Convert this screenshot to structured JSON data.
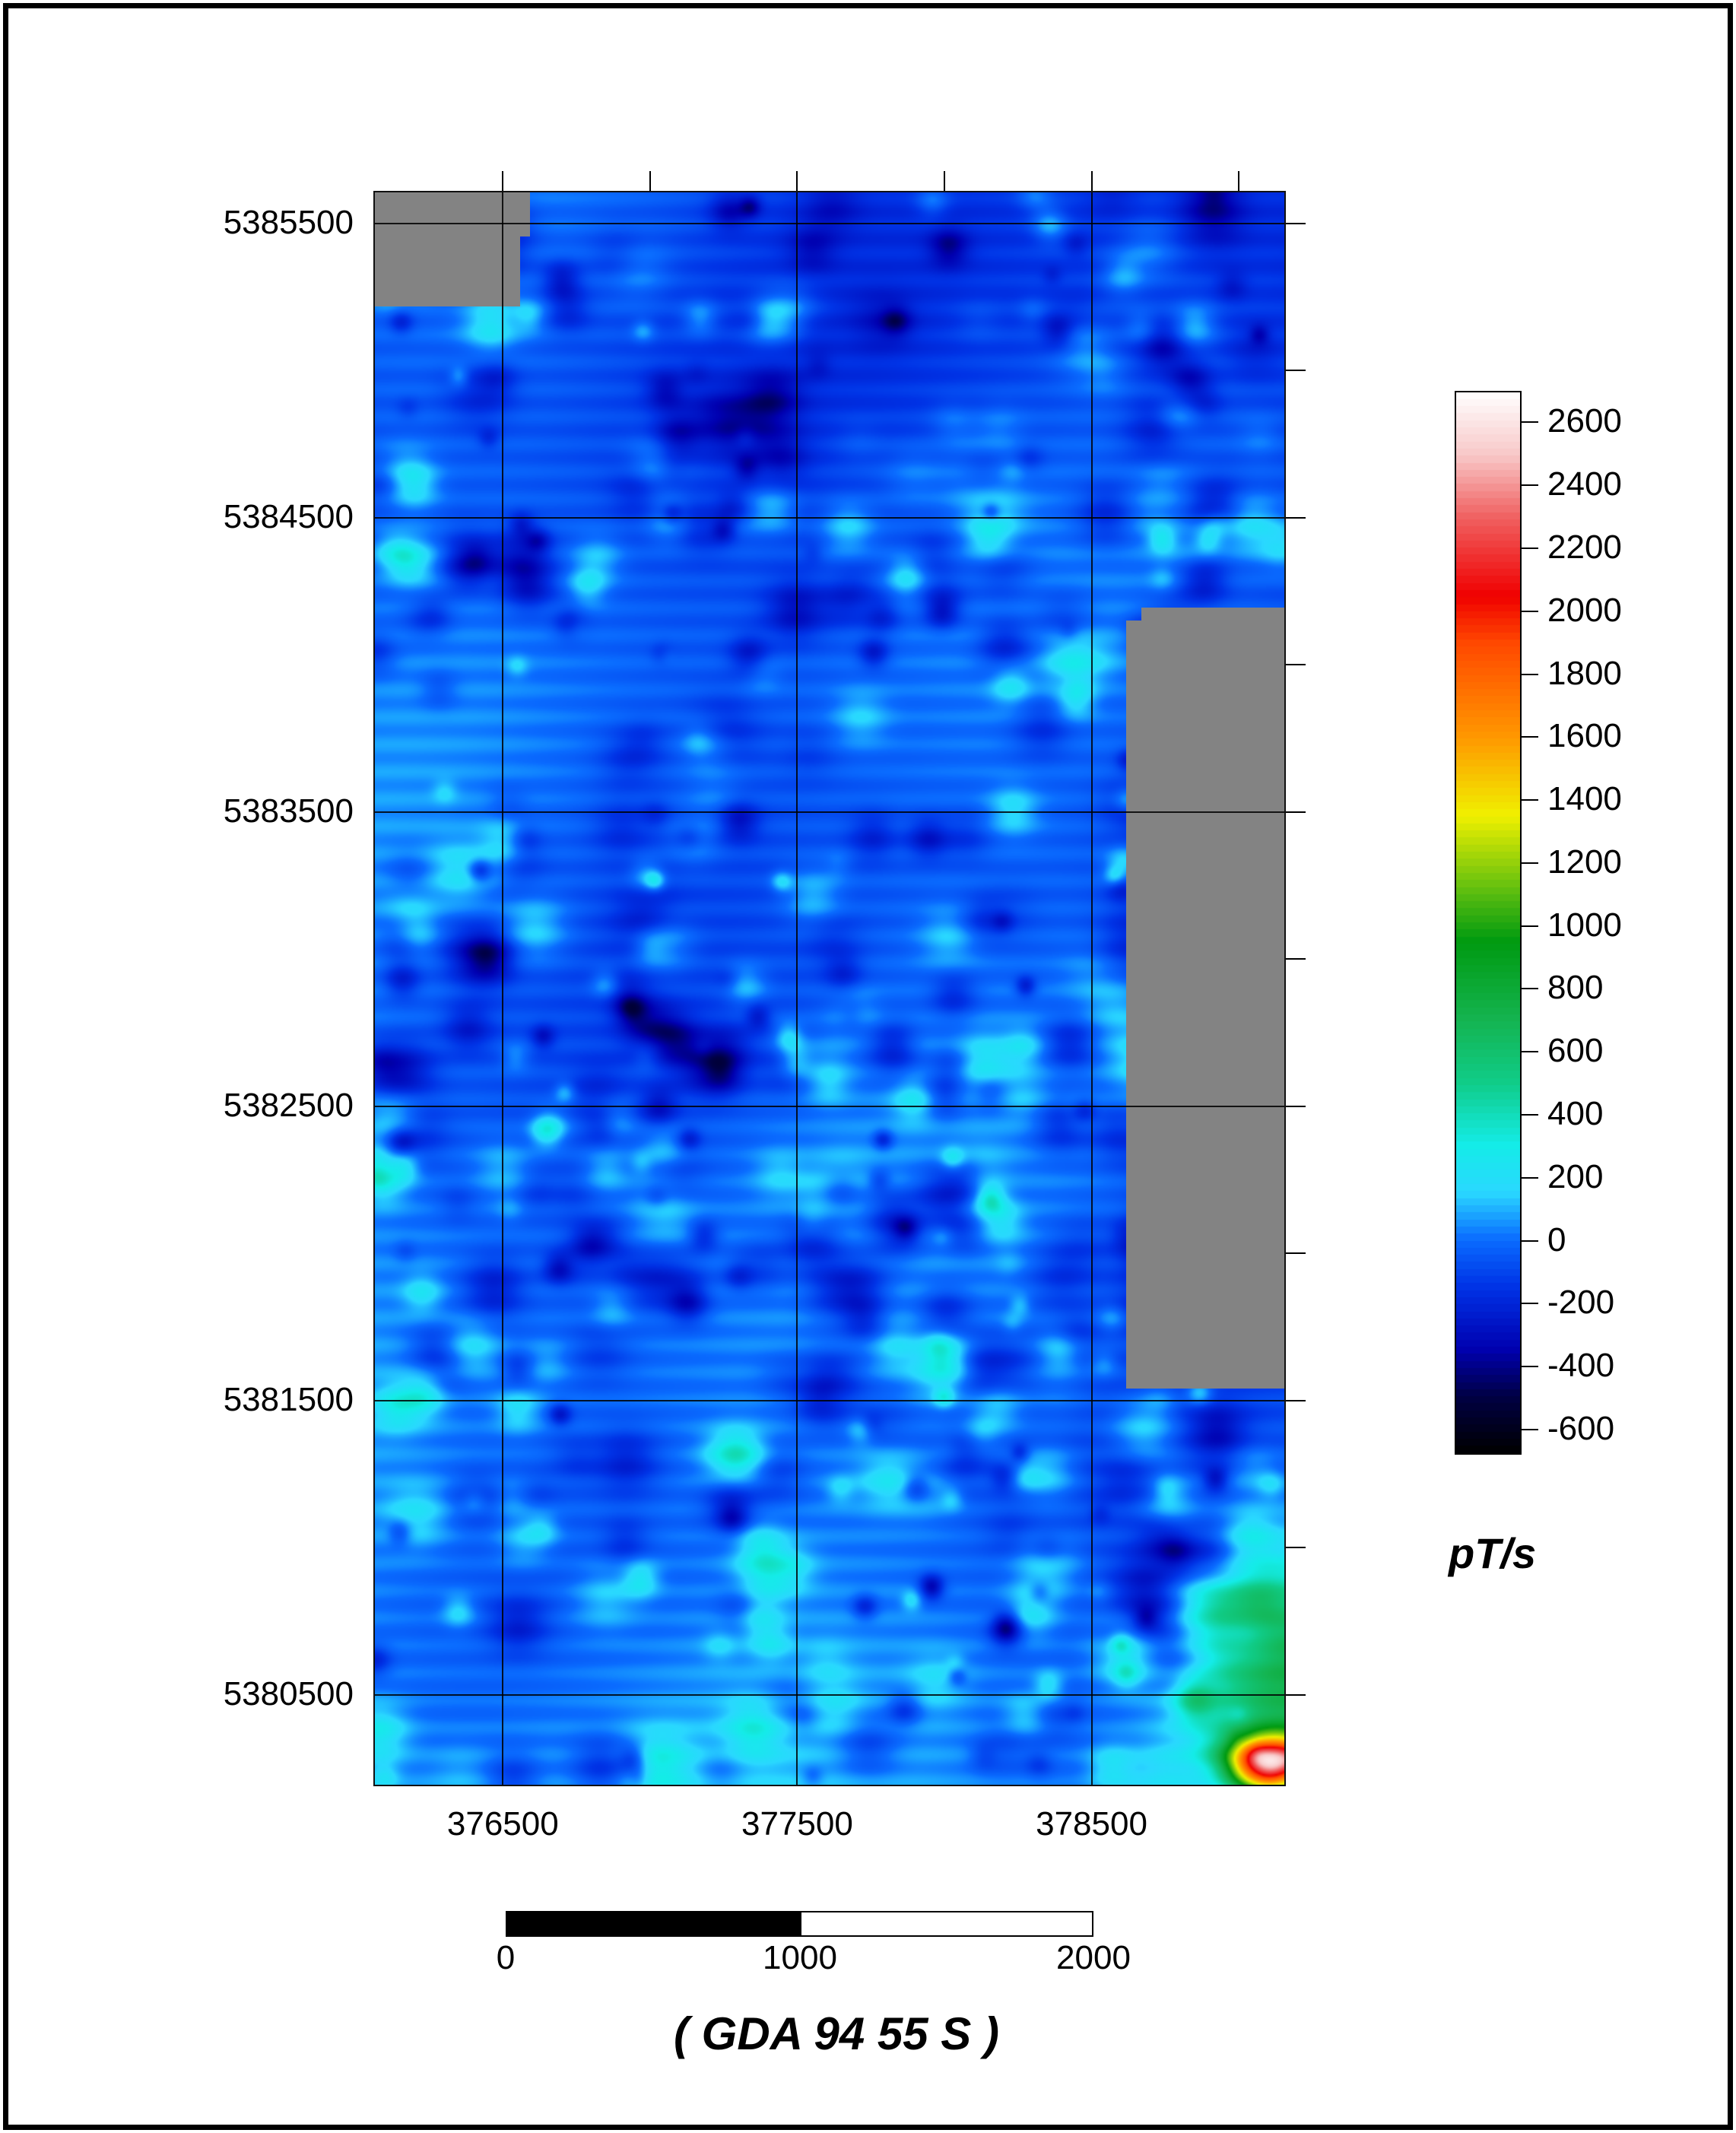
{
  "map": {
    "x_ticks": [
      {
        "value": 376500,
        "label": "376500"
      },
      {
        "value": 377500,
        "label": "377500"
      },
      {
        "value": 378500,
        "label": "378500"
      }
    ],
    "y_ticks": [
      {
        "value": 5385500,
        "label": "5385500"
      },
      {
        "value": 5384500,
        "label": "5384500"
      },
      {
        "value": 5383500,
        "label": "5383500"
      },
      {
        "value": 5382500,
        "label": "5382500"
      },
      {
        "value": 5381500,
        "label": "5381500"
      },
      {
        "value": 5380500,
        "label": "5380500"
      }
    ],
    "x_range": [
      376060,
      379160
    ],
    "y_range": [
      5380190,
      5385610
    ],
    "nodata_color": "#838383"
  },
  "colorbar": {
    "labels": [
      "2600",
      "2400",
      "2200",
      "2000",
      "1800",
      "1600",
      "1400",
      "1200",
      "1000",
      "800",
      "600",
      "400",
      "200",
      "0",
      "-200",
      "-400",
      "-600"
    ],
    "range": [
      -680,
      2700
    ],
    "stops": [
      {
        "value": -680,
        "color": "#000000"
      },
      {
        "value": -500,
        "color": "#000044"
      },
      {
        "value": -350,
        "color": "#0000b0"
      },
      {
        "value": -150,
        "color": "#0033e6"
      },
      {
        "value": 0,
        "color": "#0a6cff"
      },
      {
        "value": 150,
        "color": "#2ad8ff"
      },
      {
        "value": 300,
        "color": "#14ece8"
      },
      {
        "value": 500,
        "color": "#10cc88"
      },
      {
        "value": 700,
        "color": "#14b450"
      },
      {
        "value": 950,
        "color": "#009a10"
      },
      {
        "value": 1100,
        "color": "#58bc10"
      },
      {
        "value": 1350,
        "color": "#f0f000"
      },
      {
        "value": 1600,
        "color": "#ff9800"
      },
      {
        "value": 1900,
        "color": "#ff4800"
      },
      {
        "value": 2050,
        "color": "#f00000"
      },
      {
        "value": 2300,
        "color": "#f06060"
      },
      {
        "value": 2500,
        "color": "#f8c8c8"
      },
      {
        "value": 2700,
        "color": "#ffffff"
      }
    ],
    "units": "pT/s"
  },
  "scale_bar": {
    "labels": [
      "0",
      "1000",
      "2000"
    ]
  },
  "projection": "( GDA 94 55 S )"
}
